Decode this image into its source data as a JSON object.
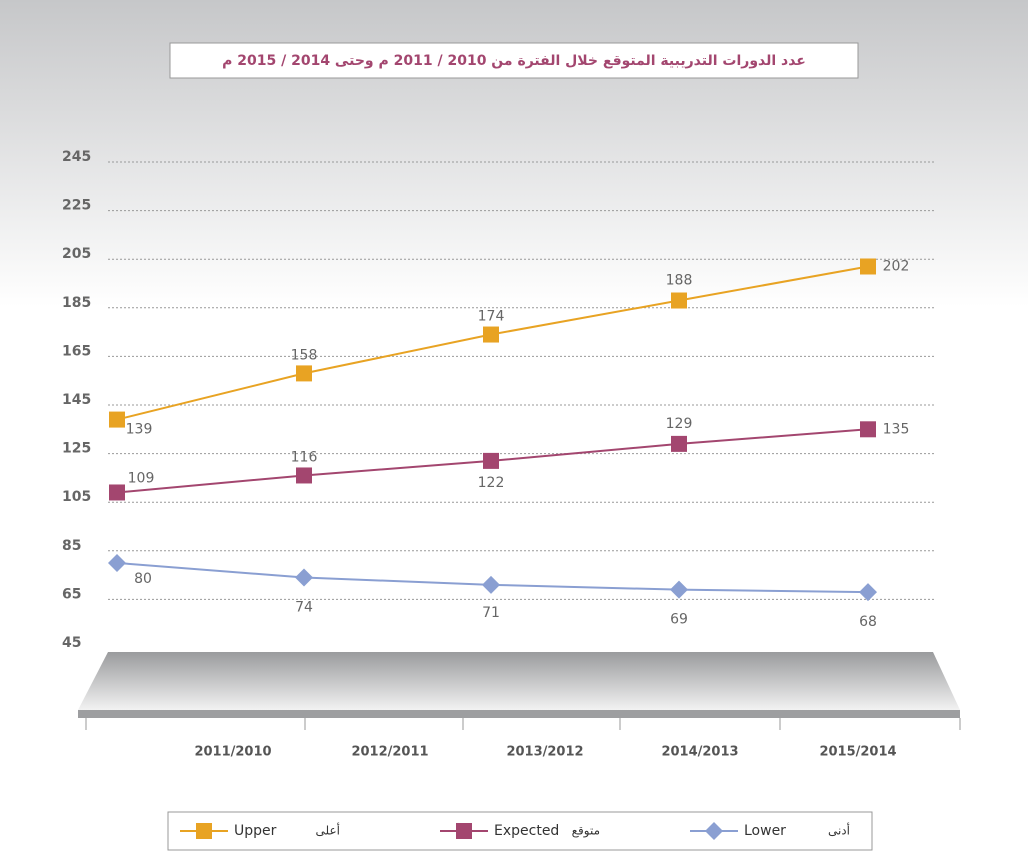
{
  "chart_data": {
    "type": "line",
    "title": "عدد الدورات التدريبية المتوقع خلال الفترة من 2010 / 2011 م وحتى 2014 / 2015 م",
    "categories": [
      "2011/2010",
      "2012/2011",
      "2013/2012",
      "2014/2013",
      "2015/2014"
    ],
    "series": [
      {
        "name": "Upper",
        "name_ar": "أعلى",
        "color": "#e8a323",
        "marker": "square",
        "values": [
          139,
          158,
          174,
          188,
          202
        ]
      },
      {
        "name": "Expected",
        "name_ar": "متوقع",
        "color": "#a3466f",
        "marker": "square",
        "values": [
          109,
          116,
          122,
          129,
          135
        ]
      },
      {
        "name": "Lower",
        "name_ar": "أدنى",
        "color": "#8a9fd2",
        "marker": "diamond",
        "values": [
          80,
          74,
          71,
          69,
          68
        ]
      }
    ],
    "ylim": [
      45,
      245
    ],
    "yticks": [
      45,
      65,
      85,
      105,
      125,
      145,
      165,
      185,
      205,
      225,
      245
    ],
    "grid": true
  }
}
